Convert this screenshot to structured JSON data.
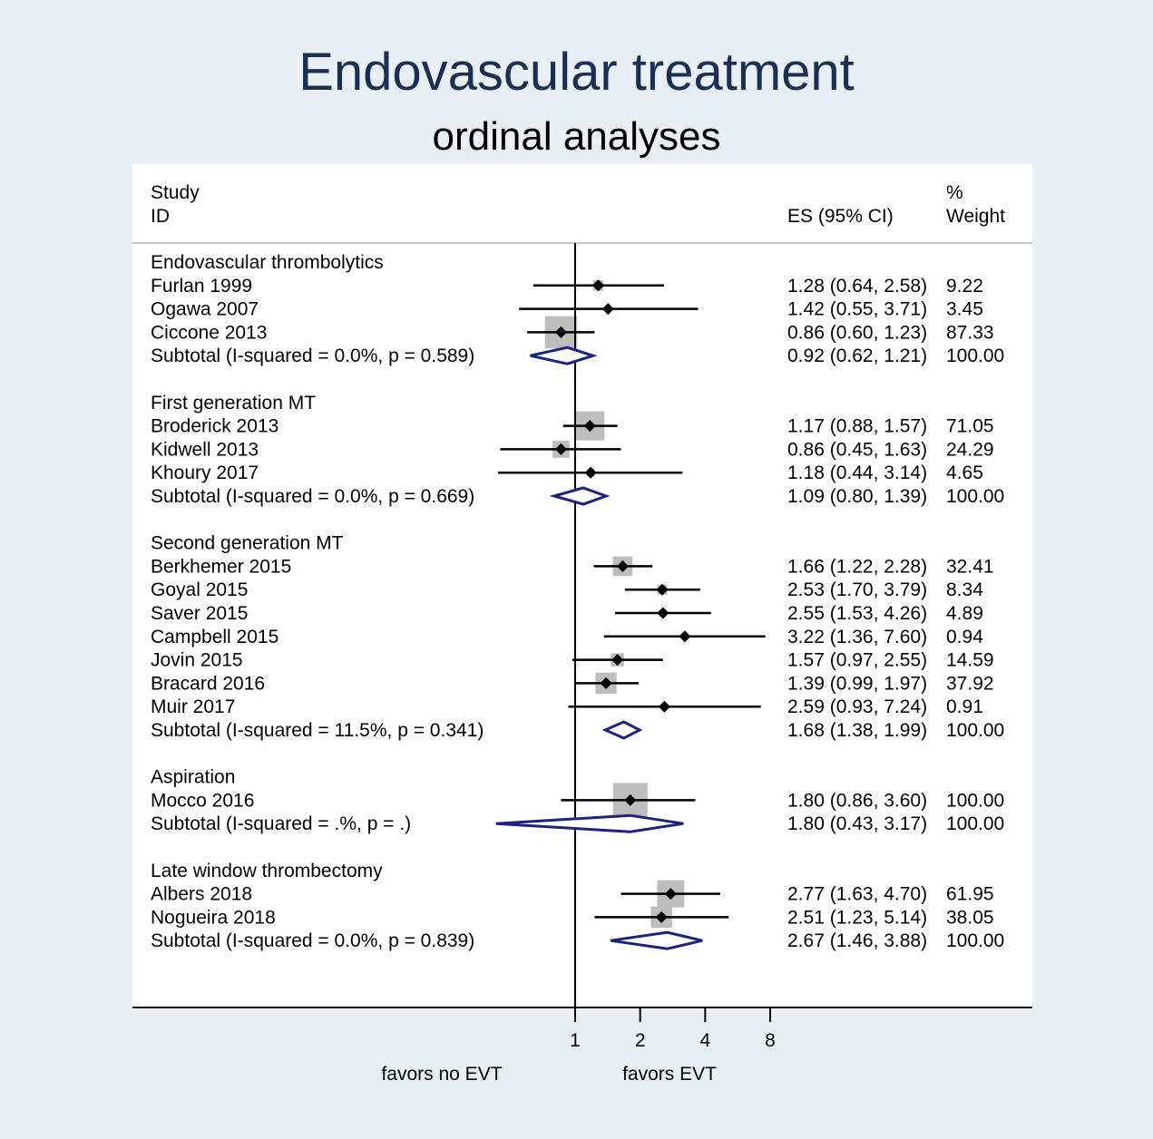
{
  "title": "Endovascular treatment",
  "subtitle": "ordinal analyses",
  "chart_data": {
    "type": "forest",
    "scale": "log",
    "x_ticks": [
      1,
      2,
      4,
      8
    ],
    "x_tick_labels": [
      "1",
      "2",
      "4",
      "8"
    ],
    "null_line": 1,
    "favors_left": "favors no EVT",
    "favors_right": "favors EVT",
    "headers": {
      "study_line1": "Study",
      "study_line2": "ID",
      "es": "ES (95% CI)",
      "weight_line1": "%",
      "weight_line2": "Weight"
    },
    "groups": [
      {
        "name": "Endovascular thrombolytics",
        "studies": [
          {
            "id": "Furlan 1999",
            "es": 1.28,
            "lo": 0.64,
            "hi": 2.58,
            "weight": 9.22,
            "es_text": "1.28 (0.64, 2.58)",
            "weight_text": "9.22"
          },
          {
            "id": "Ogawa 2007",
            "es": 1.42,
            "lo": 0.55,
            "hi": 3.71,
            "weight": 3.45,
            "es_text": "1.42 (0.55, 3.71)",
            "weight_text": "3.45"
          },
          {
            "id": "Ciccone 2013",
            "es": 0.86,
            "lo": 0.6,
            "hi": 1.23,
            "weight": 87.33,
            "es_text": "0.86 (0.60, 1.23)",
            "weight_text": "87.33"
          }
        ],
        "subtotal": {
          "label": "Subtotal  (I-squared = 0.0%, p = 0.589)",
          "es": 0.92,
          "lo": 0.62,
          "hi": 1.21,
          "es_text": "0.92 (0.62, 1.21)",
          "weight_text": "100.00"
        }
      },
      {
        "name": "First generation MT",
        "studies": [
          {
            "id": "Broderick 2013",
            "es": 1.17,
            "lo": 0.88,
            "hi": 1.57,
            "weight": 71.05,
            "es_text": "1.17 (0.88, 1.57)",
            "weight_text": "71.05"
          },
          {
            "id": "Kidwell 2013",
            "es": 0.86,
            "lo": 0.45,
            "hi": 1.63,
            "weight": 24.29,
            "es_text": "0.86 (0.45, 1.63)",
            "weight_text": "24.29"
          },
          {
            "id": "Khoury 2017",
            "es": 1.18,
            "lo": 0.44,
            "hi": 3.14,
            "weight": 4.65,
            "es_text": "1.18 (0.44, 3.14)",
            "weight_text": "4.65"
          }
        ],
        "subtotal": {
          "label": "Subtotal  (I-squared = 0.0%, p = 0.669)",
          "es": 1.09,
          "lo": 0.8,
          "hi": 1.39,
          "es_text": "1.09 (0.80, 1.39)",
          "weight_text": "100.00"
        }
      },
      {
        "name": "Second generation MT",
        "studies": [
          {
            "id": "Berkhemer 2015",
            "es": 1.66,
            "lo": 1.22,
            "hi": 2.28,
            "weight": 32.41,
            "es_text": "1.66 (1.22, 2.28)",
            "weight_text": "32.41"
          },
          {
            "id": "Goyal 2015",
            "es": 2.53,
            "lo": 1.7,
            "hi": 3.79,
            "weight": 8.34,
            "es_text": "2.53 (1.70, 3.79)",
            "weight_text": "8.34"
          },
          {
            "id": "Saver 2015",
            "es": 2.55,
            "lo": 1.53,
            "hi": 4.26,
            "weight": 4.89,
            "es_text": "2.55 (1.53, 4.26)",
            "weight_text": "4.89"
          },
          {
            "id": "Campbell 2015",
            "es": 3.22,
            "lo": 1.36,
            "hi": 7.6,
            "weight": 0.94,
            "es_text": "3.22 (1.36, 7.60)",
            "weight_text": "0.94"
          },
          {
            "id": "Jovin 2015",
            "es": 1.57,
            "lo": 0.97,
            "hi": 2.55,
            "weight": 14.59,
            "es_text": "1.57 (0.97, 2.55)",
            "weight_text": "14.59"
          },
          {
            "id": "Bracard 2016",
            "es": 1.39,
            "lo": 0.99,
            "hi": 1.97,
            "weight": 37.92,
            "es_text": "1.39 (0.99, 1.97)",
            "weight_text": "37.92"
          },
          {
            "id": "Muir 2017",
            "es": 2.59,
            "lo": 0.93,
            "hi": 7.24,
            "weight": 0.91,
            "es_text": "2.59 (0.93, 7.24)",
            "weight_text": "0.91"
          }
        ],
        "subtotal": {
          "label": "Subtotal  (I-squared = 11.5%, p = 0.341)",
          "es": 1.68,
          "lo": 1.38,
          "hi": 1.99,
          "es_text": "1.68 (1.38, 1.99)",
          "weight_text": "100.00"
        }
      },
      {
        "name": "Aspiration",
        "studies": [
          {
            "id": "Mocco 2016",
            "es": 1.8,
            "lo": 0.86,
            "hi": 3.6,
            "weight": 100.0,
            "es_text": "1.80 (0.86, 3.60)",
            "weight_text": "100.00"
          }
        ],
        "subtotal": {
          "label": "Subtotal  (I-squared = .%, p = .)",
          "es": 1.8,
          "lo": 0.43,
          "hi": 3.17,
          "es_text": "1.80 (0.43, 3.17)",
          "weight_text": "100.00"
        }
      },
      {
        "name": "Late window thrombectomy",
        "studies": [
          {
            "id": "Albers 2018",
            "es": 2.77,
            "lo": 1.63,
            "hi": 4.7,
            "weight": 61.95,
            "es_text": "2.77 (1.63, 4.70)",
            "weight_text": "61.95"
          },
          {
            "id": "Nogueira 2018",
            "es": 2.51,
            "lo": 1.23,
            "hi": 5.14,
            "weight": 38.05,
            "es_text": "2.51 (1.23, 5.14)",
            "weight_text": "38.05"
          }
        ],
        "subtotal": {
          "label": "Subtotal  (I-squared = 0.0%, p = 0.839)",
          "es": 2.67,
          "lo": 1.46,
          "hi": 3.88,
          "es_text": "2.67 (1.46, 3.88)",
          "weight_text": "100.00"
        }
      }
    ]
  },
  "colors": {
    "background": "#e9f0f5",
    "panel": "#ffffff",
    "title": "#1b2f55",
    "diamond_stroke": "#1a237e",
    "weight_box": "#bdbdbd",
    "point": "#000000"
  }
}
